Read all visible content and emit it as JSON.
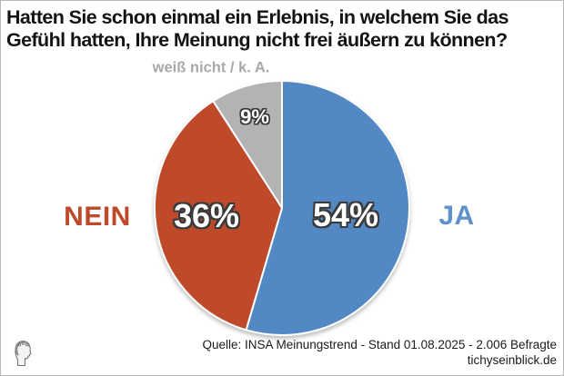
{
  "page": {
    "title_lines": [
      "Hatten Sie schon einmal ein Erlebnis, in welchem Sie das",
      "Gefühl hatten, Ihre Meinung nicht frei äußern zu können?"
    ]
  },
  "chart_data": {
    "type": "pie",
    "title": "Hatten Sie schon einmal ein Erlebnis, in welchem Sie das Gefühl hatten, Ihre Meinung nicht frei äußern zu können?",
    "unit": "percent",
    "start_angle_deg": 0,
    "direction": "clockwise",
    "values_sum_shown": 99,
    "slices": [
      {
        "id": "ja",
        "label": "JA",
        "value": 54,
        "display": "54%",
        "color": "#5289c5",
        "label_color": "#5e92cb"
      },
      {
        "id": "nein",
        "label": "NEIN",
        "value": 36,
        "display": "36%",
        "color": "#bf4a29",
        "label_color": "#bf4a29"
      },
      {
        "id": "weiss-nicht",
        "label": "weiß nicht / k. A.",
        "value": 9,
        "display": "9%",
        "color": "#b3b3b3",
        "label_color": "#a8a8a8"
      }
    ],
    "separator_color": "#ffffff"
  },
  "footer": {
    "source": "Quelle: INSA Meinungstrend - Stand 01.08.2025 - 2.006 Befragte",
    "site": "tichyseinblick.de"
  }
}
